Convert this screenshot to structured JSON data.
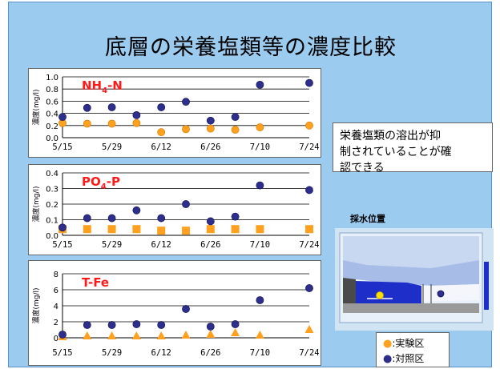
{
  "title": "底層の栄養塩類等の濃度比較",
  "note": {
    "line1": "栄養塩類の溶出が抑",
    "line2": "制されていることが確",
    "line3": "認できる"
  },
  "site": {
    "label": "採水位置"
  },
  "legend": {
    "experiment": "●:実験区",
    "control": "●:対照区"
  },
  "colors": {
    "experiment": "#ffa01e",
    "control": "#2e2e8c",
    "label": "#ff1a1a"
  },
  "chart_data": [
    {
      "type": "scatter",
      "label_main": "NH",
      "label_sub": "4",
      "label_tail": "-N",
      "ylabel": "濃度(mg/l)",
      "ylim": [
        0,
        1.0
      ],
      "yticks": [
        "0.0",
        "0.2",
        "0.4",
        "0.6",
        "0.8",
        "1.0"
      ],
      "ytick_values": [
        0,
        0.2,
        0.4,
        0.6,
        0.8,
        1.0
      ],
      "xlim": [
        0,
        70
      ],
      "xticks": [
        "5/15",
        "5/29",
        "6/12",
        "6/26",
        "7/10",
        "7/24"
      ],
      "xtick_values": [
        0,
        14,
        28,
        42,
        56,
        70
      ],
      "series": [
        {
          "marker": "circle",
          "color": "experiment",
          "x": [
            0,
            7,
            14,
            21,
            28,
            35,
            42,
            49,
            56,
            70
          ],
          "y": [
            0.24,
            0.23,
            0.23,
            0.24,
            0.09,
            0.14,
            0.15,
            0.13,
            0.17,
            0.2
          ]
        },
        {
          "marker": "circle",
          "color": "control",
          "x": [
            0,
            7,
            14,
            21,
            28,
            35,
            42,
            49,
            56,
            70
          ],
          "y": [
            0.34,
            0.49,
            0.5,
            0.37,
            0.5,
            0.59,
            0.28,
            0.34,
            0.87,
            0.9
          ]
        }
      ]
    },
    {
      "type": "scatter",
      "label_main": "PO",
      "label_sub": "4",
      "label_tail": "-P",
      "ylabel": "濃度(mg/l)",
      "ylim": [
        0,
        0.4
      ],
      "yticks": [
        "0.0",
        "0.1",
        "0.2",
        "0.3",
        "0.4"
      ],
      "ytick_values": [
        0,
        0.1,
        0.2,
        0.3,
        0.4
      ],
      "xlim": [
        0,
        70
      ],
      "xticks": [
        "5/15",
        "5/29",
        "6/12",
        "6/26",
        "7/10",
        "7/24"
      ],
      "xtick_values": [
        0,
        14,
        28,
        42,
        56,
        70
      ],
      "series": [
        {
          "marker": "square",
          "color": "experiment",
          "x": [
            0,
            7,
            14,
            21,
            28,
            35,
            42,
            49,
            56,
            70
          ],
          "y": [
            0.04,
            0.04,
            0.04,
            0.04,
            0.03,
            0.03,
            0.04,
            0.04,
            0.04,
            0.04
          ]
        },
        {
          "marker": "circle",
          "color": "control",
          "x": [
            0,
            7,
            14,
            21,
            28,
            35,
            42,
            49,
            56,
            70
          ],
          "y": [
            0.05,
            0.11,
            0.11,
            0.16,
            0.11,
            0.2,
            0.09,
            0.12,
            0.32,
            0.29
          ]
        }
      ]
    },
    {
      "type": "scatter",
      "label_main": "T-Fe",
      "label_sub": "",
      "label_tail": "",
      "ylabel": "濃度(mg/l)",
      "ylim": [
        0,
        8
      ],
      "yticks": [
        "0",
        "2",
        "4",
        "6",
        "8"
      ],
      "ytick_values": [
        0,
        2,
        4,
        6,
        8
      ],
      "xlim": [
        0,
        70
      ],
      "xticks": [
        "5/15",
        "5/29",
        "6/12",
        "6/26",
        "7/10",
        "7/24"
      ],
      "xtick_values": [
        0,
        14,
        28,
        42,
        56,
        70
      ],
      "series": [
        {
          "marker": "triangle",
          "color": "experiment",
          "x": [
            0,
            7,
            14,
            21,
            28,
            35,
            42,
            49,
            56,
            70
          ],
          "y": [
            0.1,
            0.2,
            0.2,
            0.2,
            0.2,
            0.3,
            0.4,
            0.6,
            0.3,
            1.0
          ]
        },
        {
          "marker": "circle",
          "color": "control",
          "x": [
            0,
            7,
            14,
            21,
            28,
            35,
            42,
            49,
            56,
            70
          ],
          "y": [
            0.4,
            1.6,
            1.6,
            1.7,
            1.6,
            3.6,
            1.4,
            1.7,
            4.7,
            6.2
          ]
        }
      ]
    }
  ]
}
